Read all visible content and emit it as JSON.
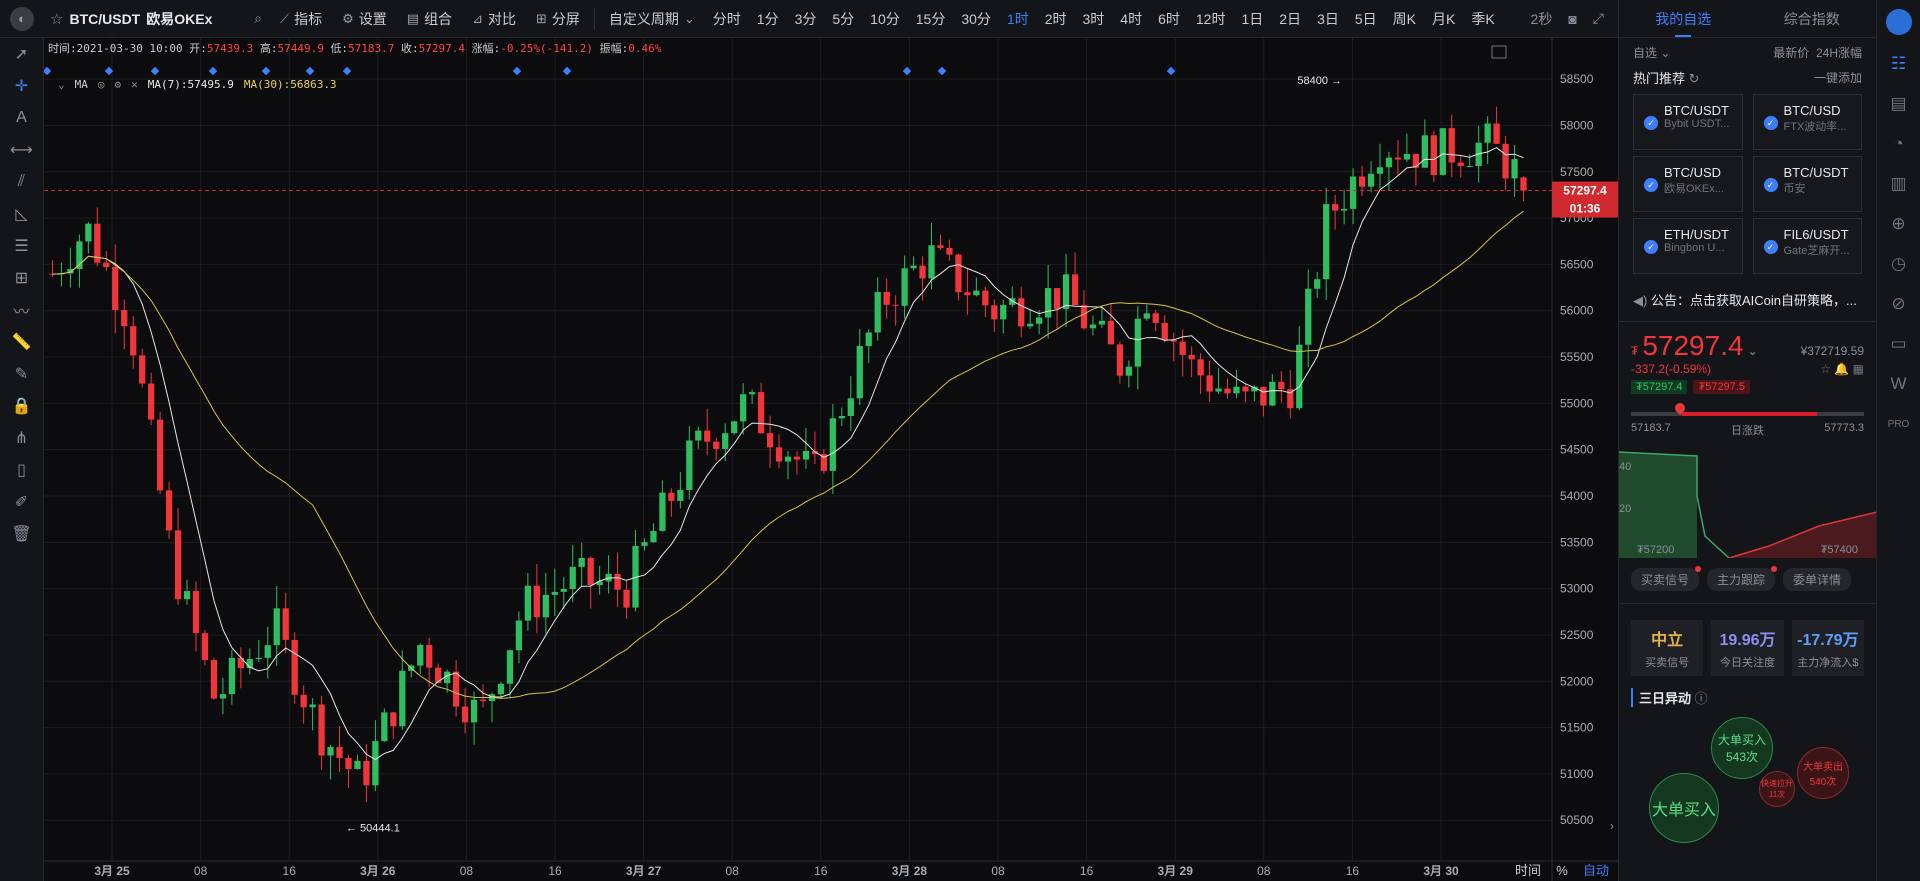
{
  "topbar": {
    "symbol": "BTC/USDT",
    "exchange": "欧易OKEx",
    "tools": [
      "指标",
      "设置",
      "组合",
      "对比",
      "分屏"
    ],
    "custom_period": "自定义周期",
    "periods": [
      "分时",
      "1分",
      "3分",
      "5分",
      "10分",
      "15分",
      "30分",
      "1时",
      "2时",
      "3时",
      "4时",
      "6时",
      "12时",
      "1日",
      "2日",
      "3日",
      "5日",
      "周K",
      "月K",
      "季K"
    ],
    "active_period": "1时",
    "refresh": "2秒"
  },
  "infobar": {
    "time_label": "时间:",
    "time": "2021-03-30 10:00",
    "open_label": "开:",
    "open": "57439.3",
    "high_label": "高:",
    "high": "57449.9",
    "low_label": "低:",
    "low": "57183.7",
    "close_label": "收:",
    "close": "57297.4",
    "change_label": "涨幅:",
    "change": "-0.25%(-141.2)",
    "amp_label": "振幅:",
    "amp": "0.46%"
  },
  "ma_legend": {
    "name": "MA",
    "ma7": "MA(7):57495.9",
    "ma30": "MA(30):56863.3"
  },
  "chart_data": {
    "type": "candlestick",
    "price_axis_ticks": [
      58500,
      58000,
      57500,
      57000,
      56500,
      56000,
      55500,
      55000,
      54500,
      54000,
      53500,
      53000,
      52500,
      52000,
      51500,
      51000,
      50500
    ],
    "time_axis_labels": [
      "3月 25",
      "08",
      "16",
      "3月 26",
      "08",
      "16",
      "3月 27",
      "08",
      "16",
      "3月 28",
      "08",
      "16",
      "3月 29",
      "08",
      "16",
      "3月 30"
    ],
    "ylim": [
      50200,
      58750
    ],
    "current_price": "57297.4",
    "countdown": "01:36",
    "high_marker": "58400 →",
    "low_marker": "← 50444.1",
    "colors": {
      "up": "#2ebd5f",
      "down": "#f0353b",
      "ma7": "#e6e6e6",
      "ma30": "#d4c24a"
    }
  },
  "bottom_bar": {
    "labels": [
      "时间",
      "%",
      "自动"
    ]
  },
  "panel": {
    "tabs": [
      "我的自选",
      "综合指数"
    ],
    "filter": "自选",
    "col_price": "最新价",
    "col_change": "24H涨幅",
    "hot_title": "热门推荐",
    "add_all": "一键添加",
    "favorites": [
      {
        "pair": "BTC/USDT",
        "source": "Bybit USDT..."
      },
      {
        "pair": "BTC/USD",
        "source": "FTX波动率..."
      },
      {
        "pair": "BTC/USD",
        "source": "欧易OKEx..."
      },
      {
        "pair": "BTC/USDT",
        "source": "币安"
      },
      {
        "pair": "ETH/USDT",
        "source": "Bingbon U..."
      },
      {
        "pair": "FIL6/USDT",
        "source": "Gate芝麻开..."
      }
    ],
    "notice": "公告：点击获取AICoin自研策略，...",
    "price": "57297.4",
    "currency": "₮",
    "rmb": "¥372719.59",
    "change": "-337.2(-0.59%)",
    "bid": "₮57297.4",
    "ask": "₮57297.5",
    "low": "57183.7",
    "range_label": "日涨跌",
    "high": "57773.3",
    "depth_y": [
      "40",
      "20"
    ],
    "depth_x": [
      "₮57200",
      "₮57400"
    ],
    "buttons": [
      "买卖信号",
      "主力跟踪",
      "委单详情"
    ],
    "stats": [
      {
        "value": "中立",
        "label": "买卖信号",
        "color": "#e8b34a"
      },
      {
        "value": "19.96万",
        "label": "今日关注度",
        "color": "#8f8ff5"
      },
      {
        "value": "-17.79万",
        "label": "主力净流入$",
        "color": "#5aa0ff"
      }
    ],
    "section3": "三日异动",
    "bubbles": [
      {
        "title": "大单买入",
        "count": "543次"
      },
      {
        "title": "大单卖出",
        "count": "540次"
      },
      {
        "title": "快速拉升",
        "count": "11次"
      },
      {
        "title": "大单买入",
        "count": ""
      }
    ]
  }
}
